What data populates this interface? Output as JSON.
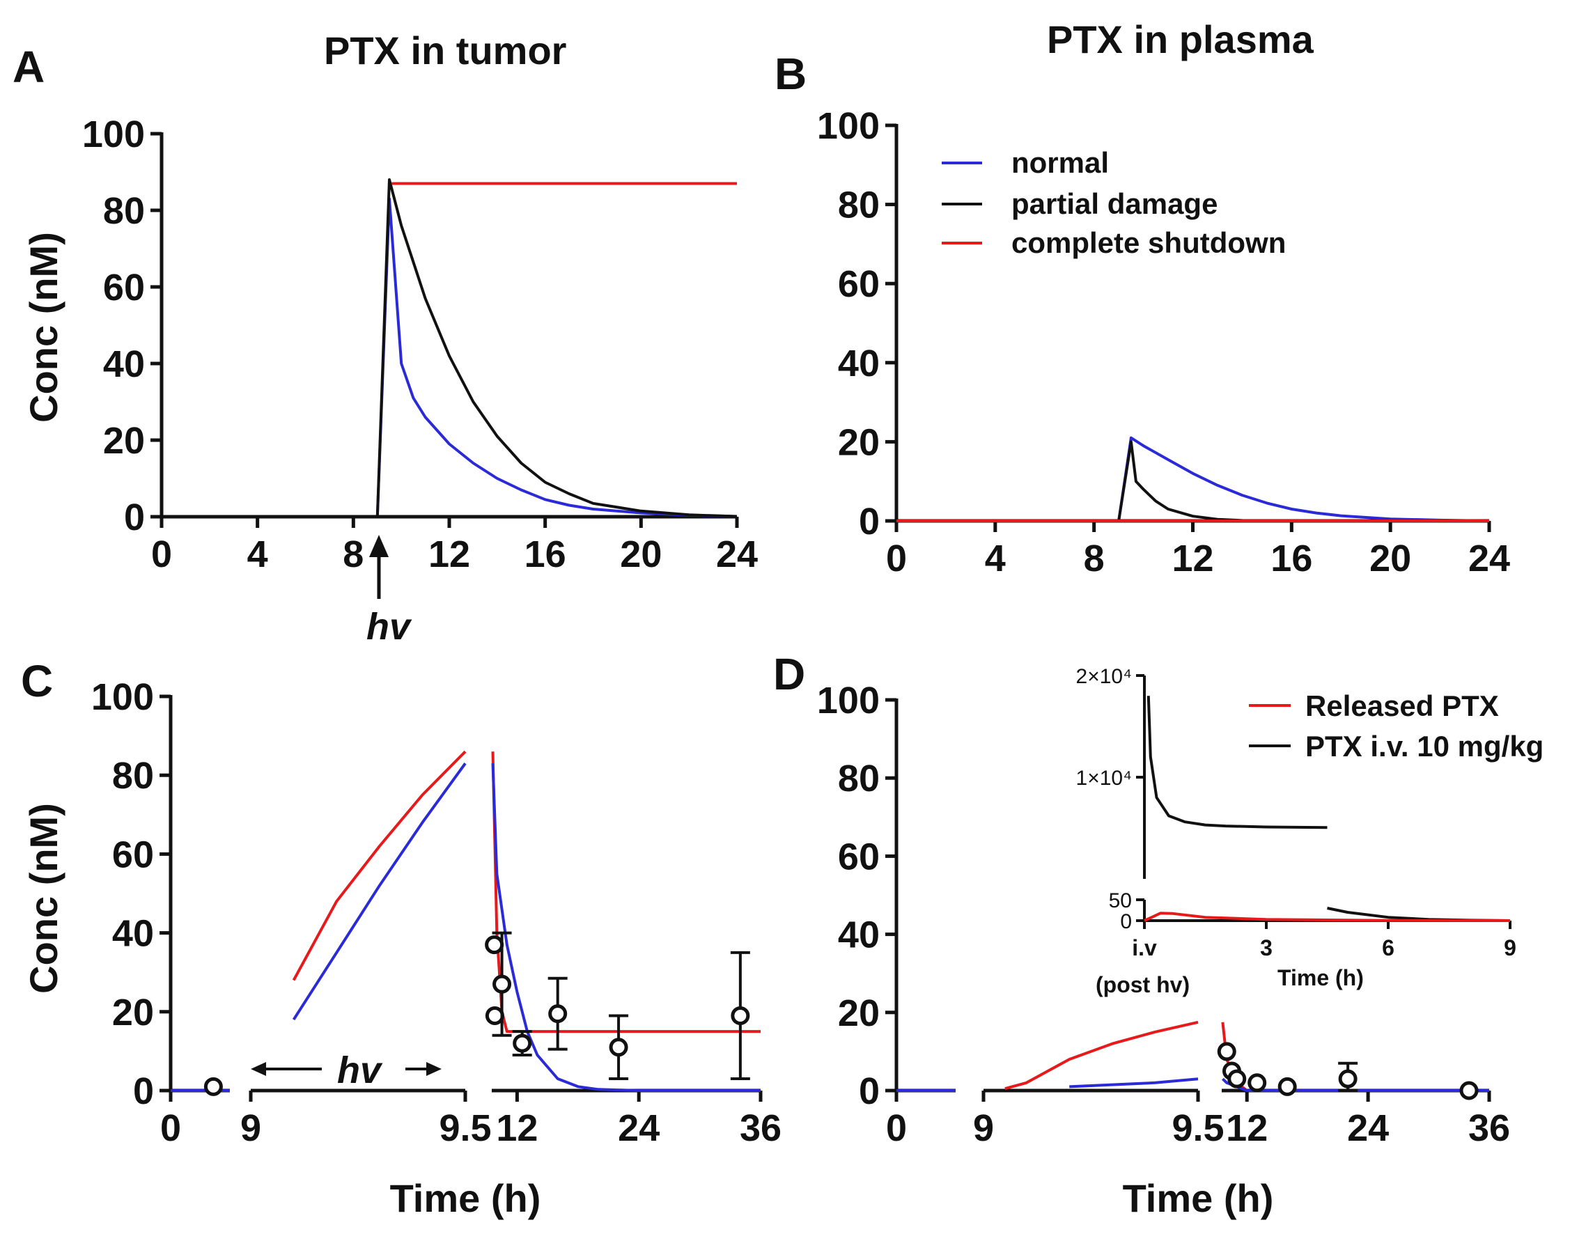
{
  "chart_data": [
    {
      "panel": "A",
      "type": "line",
      "title": "PTX in tumor",
      "xlabel": "",
      "ylabel": "Conc (nM)",
      "xlim": [
        0,
        24
      ],
      "ylim": [
        0,
        100
      ],
      "xticks": [
        0,
        4,
        8,
        12,
        16,
        20,
        24
      ],
      "yticks": [
        0,
        20,
        40,
        60,
        80,
        100
      ],
      "annotation": "hv",
      "annotation_x": 9,
      "series": [
        {
          "name": "normal",
          "color": "#2a2ad8",
          "x": [
            0,
            9,
            9.5,
            10,
            10.5,
            11,
            12,
            13,
            14,
            15,
            16,
            17,
            18,
            20,
            22,
            24
          ],
          "y": [
            0,
            0,
            83,
            40,
            31,
            26,
            19,
            14,
            10,
            7,
            4.5,
            3,
            2,
            1,
            0.4,
            0.1
          ]
        },
        {
          "name": "partial damage",
          "color": "#111111",
          "x": [
            0,
            9,
            9.5,
            10,
            11,
            12,
            13,
            14,
            15,
            16,
            17,
            18,
            20,
            22,
            24
          ],
          "y": [
            0,
            0,
            88,
            76,
            57,
            42,
            30,
            21,
            14,
            9,
            6,
            3.5,
            1.5,
            0.5,
            0.1
          ]
        },
        {
          "name": "complete shutdown",
          "color": "#e8191b",
          "x": [
            9.6,
            24
          ],
          "y": [
            87,
            87
          ]
        }
      ]
    },
    {
      "panel": "B",
      "type": "line",
      "title": "PTX in plasma",
      "xlabel": "",
      "ylabel": "",
      "xlim": [
        0,
        24
      ],
      "ylim": [
        0,
        100
      ],
      "xticks": [
        0,
        4,
        8,
        12,
        16,
        20,
        24
      ],
      "yticks": [
        0,
        20,
        40,
        60,
        80,
        100
      ],
      "legend": [
        "normal",
        "partial damage",
        "complete shutdown"
      ],
      "series": [
        {
          "name": "normal",
          "color": "#2a2ad8",
          "x": [
            0,
            9,
            9.5,
            10,
            11,
            12,
            13,
            14,
            15,
            16,
            17,
            18,
            20,
            22,
            24
          ],
          "y": [
            0,
            0,
            21,
            19,
            15.5,
            12,
            9,
            6.5,
            4.5,
            3,
            2,
            1.3,
            0.5,
            0.2,
            0
          ]
        },
        {
          "name": "partial damage",
          "color": "#111111",
          "x": [
            0,
            9,
            9.5,
            9.7,
            10,
            10.5,
            11,
            12,
            13,
            14,
            24
          ],
          "y": [
            0,
            0,
            20,
            10,
            8,
            5,
            3,
            1.2,
            0.4,
            0.1,
            0
          ]
        },
        {
          "name": "complete shutdown",
          "color": "#e8191b",
          "x": [
            0,
            24
          ],
          "y": [
            0,
            0
          ]
        }
      ]
    },
    {
      "panel": "C",
      "type": "line",
      "title": "",
      "xlabel": "Time (h)",
      "ylabel": "Conc (nM)",
      "ylim": [
        0,
        100
      ],
      "yticks": [
        0,
        20,
        40,
        60,
        80,
        100
      ],
      "x_segments": [
        {
          "range": [
            0,
            9
          ],
          "ticks": [
            "0"
          ]
        },
        {
          "range": [
            9,
            9.5
          ],
          "ticks": [
            "9",
            "9.5"
          ]
        },
        {
          "range": [
            9.5,
            36
          ],
          "ticks": [
            "12",
            "24",
            "36"
          ]
        }
      ],
      "annotation": "hv",
      "series": [
        {
          "name": "released PTX (model)",
          "color": "#e8191b",
          "x": [
            0,
            6,
            9,
            9.1,
            9.2,
            9.3,
            9.4,
            9.5,
            9.6,
            10,
            10.5,
            11,
            36
          ],
          "y": [
            0,
            0,
            0,
            28,
            48,
            62,
            75,
            86,
            86,
            40,
            20,
            15,
            15
          ]
        },
        {
          "name": "normal (model)",
          "color": "#2a2ad8",
          "x": [
            0,
            6,
            9,
            9.1,
            9.2,
            9.3,
            9.4,
            9.5,
            9.6,
            10,
            11,
            12,
            13,
            14,
            16,
            18,
            20,
            24,
            36
          ],
          "y": [
            0,
            0,
            0,
            18,
            35,
            52,
            68,
            83,
            83,
            55,
            37,
            25,
            15,
            9,
            3,
            1,
            0.3,
            0,
            0
          ]
        }
      ],
      "points": [
        {
          "x": 6.5,
          "y": 1,
          "err": 0
        },
        {
          "x": 9.75,
          "y": 37,
          "err": 0
        },
        {
          "x": 9.8,
          "y": 19,
          "err": 0
        },
        {
          "x": 10.5,
          "y": 27,
          "err": 13
        },
        {
          "x": 12.5,
          "y": 12,
          "err": 3
        },
        {
          "x": 16,
          "y": 19.5,
          "err": 9
        },
        {
          "x": 22,
          "y": 11,
          "err": 8
        },
        {
          "x": 34,
          "y": 19,
          "err": 16
        }
      ]
    },
    {
      "panel": "D",
      "type": "line",
      "title": "",
      "xlabel": "Time (h)",
      "ylabel": "",
      "ylim": [
        0,
        100
      ],
      "yticks": [
        0,
        20,
        40,
        60,
        80,
        100
      ],
      "x_segments": [
        {
          "range": [
            0,
            9
          ],
          "ticks": [
            "0"
          ]
        },
        {
          "range": [
            9,
            9.5
          ],
          "ticks": [
            "9",
            "9.5"
          ]
        },
        {
          "range": [
            9.5,
            36
          ],
          "ticks": [
            "12",
            "24",
            "36"
          ]
        }
      ],
      "series": [
        {
          "name": "released PTX (model)",
          "color": "#e8191b",
          "x": [
            0,
            6,
            9,
            9.05,
            9.1,
            9.2,
            9.3,
            9.4,
            9.5,
            9.6,
            10,
            11,
            12,
            36
          ],
          "y": [
            0,
            0,
            0,
            0.5,
            2,
            8,
            12,
            15,
            17.5,
            17.5,
            8,
            2,
            0,
            0
          ]
        },
        {
          "name": "normal (model)",
          "color": "#2a2ad8",
          "x": [
            0,
            9,
            9.2,
            9.4,
            9.5,
            9.6,
            10,
            11,
            12,
            36
          ],
          "y": [
            0,
            0,
            1,
            2,
            3,
            3,
            2,
            1,
            0,
            0
          ]
        }
      ],
      "points": [
        {
          "x": 10,
          "y": 10,
          "err": 0
        },
        {
          "x": 10.5,
          "y": 5,
          "err": 0
        },
        {
          "x": 11,
          "y": 3,
          "err": 0
        },
        {
          "x": 13,
          "y": 2,
          "err": 0
        },
        {
          "x": 16,
          "y": 1,
          "err": 0
        },
        {
          "x": 22,
          "y": 3,
          "err": 4
        },
        {
          "x": 34,
          "y": 0,
          "err": 0
        }
      ],
      "inset": {
        "xlabel": "Time (h)",
        "xticks": [
          "i.v",
          "3",
          "6",
          "9"
        ],
        "xtick_note": "(post hv)",
        "yticks": [
          "0",
          "50",
          "1×10⁴",
          "2×10⁴"
        ],
        "legend": [
          "Released PTX",
          "PTX i.v. 10 mg/kg"
        ],
        "series": [
          {
            "name": "PTX i.v. 10 mg/kg",
            "color": "#111111",
            "x": [
              0.1,
              0.15,
              0.3,
              0.6,
              1,
              1.5,
              2,
              3,
              4.5
            ],
            "y": [
              18000,
              12000,
              8000,
              6200,
              5600,
              5300,
              5200,
              5100,
              5050
            ]
          },
          {
            "name": "PTX i.v. 10 mg/kg (low)",
            "color": "#111111",
            "x": [
              4.5,
              5,
              6,
              7,
              8,
              9
            ],
            "y": [
              30,
              20,
              8,
              3,
              1,
              0
            ]
          },
          {
            "name": "Released PTX",
            "color": "#e8191b",
            "x": [
              0,
              0.4,
              0.7,
              1.5,
              3,
              6,
              9
            ],
            "y": [
              0,
              18,
              17,
              8,
              3,
              0.5,
              0
            ]
          }
        ]
      }
    }
  ],
  "labels": {
    "panel_a": "A",
    "panel_b": "B",
    "panel_c": "C",
    "panel_d": "D",
    "title_a": "PTX in tumor",
    "title_b": "PTX in plasma",
    "ylabel": "Conc (nM)",
    "xlabel": "Time (h)",
    "hv": "hv",
    "legend_b": [
      "normal",
      "partial damage",
      "complete shutdown"
    ],
    "legend_d": [
      "Released PTX",
      "PTX i.v. 10 mg/kg"
    ],
    "inset_xlabel": "Time (h)",
    "inset_xtick_note": "(post hv)"
  }
}
